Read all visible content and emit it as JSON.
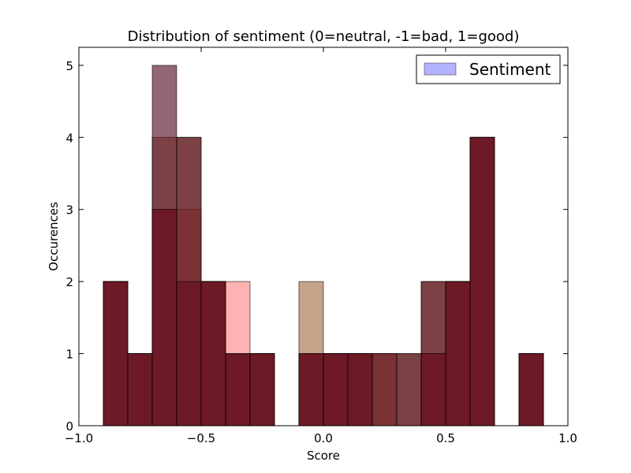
{
  "chart_data": {
    "type": "bar",
    "title": "Distribution of sentiment (0=neutral, -1=bad, 1=good)",
    "xlabel": "Score",
    "ylabel": "Occurences",
    "xlim": [
      -1.0,
      1.0
    ],
    "ylim": [
      0,
      5.25
    ],
    "xticks": [
      -1.0,
      -0.5,
      0.0,
      0.5,
      1.0
    ],
    "xtick_labels": [
      "−1.0",
      "−0.5",
      "0.0",
      "0.5",
      "1.0"
    ],
    "yticks": [
      0,
      1,
      2,
      3,
      4,
      5
    ],
    "ytick_labels": [
      "0",
      "1",
      "2",
      "3",
      "4",
      "5"
    ],
    "grid": false,
    "legend": {
      "position": "top-right",
      "entries": [
        {
          "label": "Sentiment",
          "color": "#0000ff",
          "alpha": 0.3
        }
      ]
    },
    "bin_edges": [
      -1.0,
      -0.9,
      -0.8,
      -0.7,
      -0.6,
      -0.5,
      -0.4,
      -0.3,
      -0.2,
      -0.1,
      0.0,
      0.1,
      0.2,
      0.3,
      0.4,
      0.5,
      0.6,
      0.7,
      0.8,
      0.9,
      1.0
    ],
    "series": [
      {
        "color": "#ff0000",
        "alpha": 0.3,
        "values": [
          0,
          2,
          1,
          3,
          3,
          2,
          2,
          1,
          0,
          1,
          1,
          1,
          1,
          0,
          1,
          2,
          4,
          0,
          1,
          0
        ]
      },
      {
        "color": "#8b4513",
        "alpha": 0.5,
        "values": [
          0,
          2,
          1,
          4,
          4,
          2,
          1,
          1,
          0,
          2,
          1,
          1,
          1,
          1,
          2,
          2,
          4,
          0,
          1,
          0
        ]
      },
      {
        "color": "#4b0018",
        "alpha": 0.6,
        "values": [
          0,
          2,
          1,
          5,
          4,
          2,
          1,
          1,
          0,
          1,
          1,
          1,
          1,
          1,
          2,
          2,
          4,
          0,
          1,
          0
        ]
      },
      {
        "color": "#5a0014",
        "alpha": 0.45,
        "values": [
          0,
          2,
          1,
          3,
          2,
          2,
          1,
          1,
          0,
          1,
          1,
          1,
          0,
          0,
          1,
          2,
          4,
          0,
          1,
          0
        ]
      }
    ]
  }
}
